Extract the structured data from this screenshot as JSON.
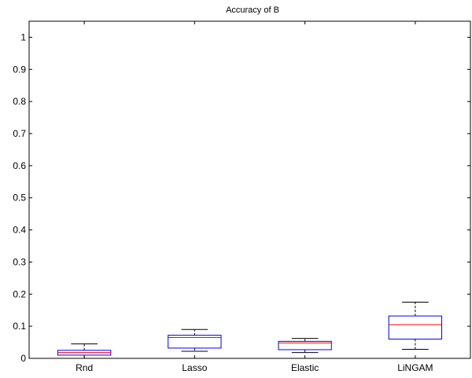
{
  "chart_data": {
    "type": "box",
    "title": "Accuracy of B",
    "xlabel": "",
    "ylabel": "",
    "ylim": [
      0,
      1.05
    ],
    "yticks": [
      "0",
      "0.1",
      "0.2",
      "0.3",
      "0.4",
      "0.5",
      "0.6",
      "0.7",
      "0.8",
      "0.9",
      "1"
    ],
    "categories": [
      "Rnd",
      "Lasso",
      "Elastic",
      "LiNGAM"
    ],
    "boxes": [
      {
        "whisker_low": 0.0,
        "q1": 0.01,
        "median": 0.018,
        "q3": 0.025,
        "whisker_high": 0.045
      },
      {
        "whisker_low": 0.022,
        "q1": 0.032,
        "median": 0.065,
        "q3": 0.072,
        "whisker_high": 0.09
      },
      {
        "whisker_low": 0.018,
        "q1": 0.027,
        "median": 0.048,
        "q3": 0.053,
        "whisker_high": 0.062
      },
      {
        "whisker_low": 0.028,
        "q1": 0.06,
        "median": 0.105,
        "q3": 0.132,
        "whisker_high": 0.175
      }
    ],
    "grid": false,
    "colors": {
      "box": "#0000ff",
      "median": "#ff0000",
      "whisker": "#000000",
      "axis": "#000000"
    }
  }
}
